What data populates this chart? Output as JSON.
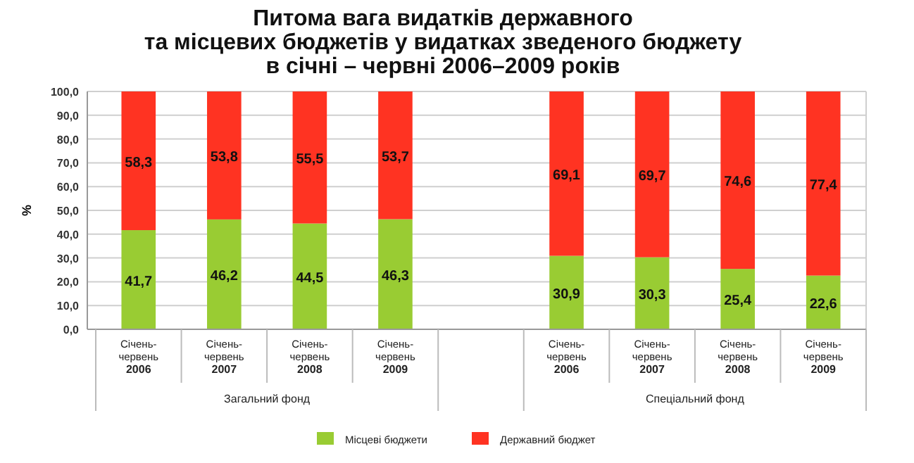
{
  "chart_data": {
    "type": "bar",
    "stacked": true,
    "title": "Питома вага видатків державного\nта місцевих бюджетів у видатках зведеного бюджету\nв січні – червні 2006–2009 років",
    "ylabel": "%",
    "categories": [
      "Січень-червень 2006",
      "Січень-червень 2007",
      "Січень-червень 2008",
      "Січень-червень 2009",
      null,
      "Січень-червень 2006",
      "Січень-червень 2007",
      "Січень-червень 2008",
      "Січень-червень 2009"
    ],
    "series": [
      {
        "name": "Місцеві бюджети",
        "color": "#99cc33",
        "values": [
          41.7,
          46.2,
          44.5,
          46.3,
          null,
          30.9,
          30.3,
          25.4,
          22.6
        ],
        "value_labels": [
          "41,7",
          "46,2",
          "44,5",
          "46,3",
          null,
          "30,9",
          "30,3",
          "25,4",
          "22,6"
        ]
      },
      {
        "name": "Державний бюджет",
        "color": "#ff3322",
        "values": [
          58.3,
          53.8,
          55.5,
          53.7,
          null,
          69.1,
          69.7,
          74.6,
          77.4
        ],
        "value_labels": [
          "58,3",
          "53,8",
          "55,5",
          "53,7",
          null,
          "69,1",
          "69,7",
          "74,6",
          "77,4"
        ]
      }
    ],
    "annotations": [
      "Загальний фонд",
      "Спеціальний фонд"
    ],
    "ylim": [
      0,
      100
    ],
    "yticks": [
      {
        "value": 0,
        "label": "0,0"
      },
      {
        "value": 10,
        "label": "10,0"
      },
      {
        "value": 20,
        "label": "20,0"
      },
      {
        "value": 30,
        "label": "30,0"
      },
      {
        "value": 40,
        "label": "40,0"
      },
      {
        "value": 50,
        "label": "50,0"
      },
      {
        "value": 60,
        "label": "60,0"
      },
      {
        "value": 70,
        "label": "70,0"
      },
      {
        "value": 80,
        "label": "80,0"
      },
      {
        "value": 90,
        "label": "90,0"
      },
      {
        "value": 100,
        "label": "100,0"
      }
    ],
    "grid": "y",
    "legend": "bottom"
  }
}
